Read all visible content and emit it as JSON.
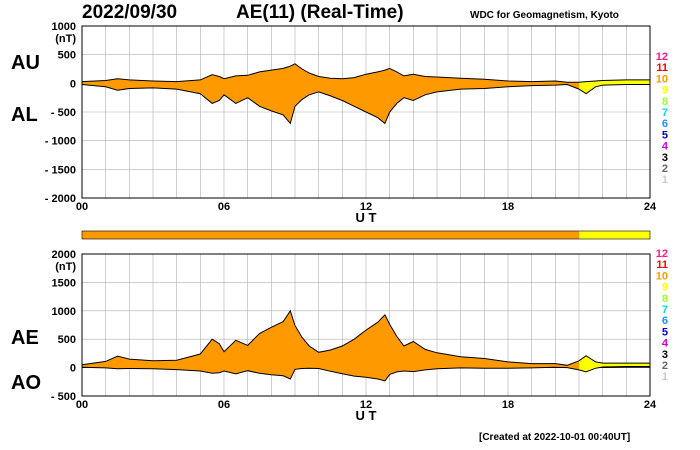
{
  "header": {
    "date": "2022/09/30",
    "title": "AE(11) (Real-Time)",
    "credit": "WDC for Geomagnetism, Kyoto"
  },
  "footer": {
    "created": "[Created at 2022-10-01 00:40UT]"
  },
  "side_labels": {
    "top_upper": "AU",
    "top_lower": "AL",
    "bottom_upper": "AE",
    "bottom_lower": "AO"
  },
  "station_legend": {
    "labels": [
      "12",
      "11",
      "10",
      "9",
      "8",
      "7",
      "6",
      "5",
      "4",
      "3",
      "2",
      "1"
    ],
    "colors": [
      "#ff1a8c",
      "#ff0000",
      "#ff9900",
      "#ffff00",
      "#99ff33",
      "#00dddd",
      "#1e90ff",
      "#0000cc",
      "#cc00cc",
      "#000000",
      "#666666",
      "#cccccc"
    ]
  },
  "colors": {
    "fill_main": "#ff9900",
    "fill_partial": "#ffff00",
    "line": "#000000",
    "grid": "#b0b0b0"
  },
  "chart_data": [
    {
      "type": "area",
      "panel": "AU/AL",
      "unit_label": "(nT)",
      "xlabel": "U T",
      "ylabel": "",
      "xlim": [
        0,
        24
      ],
      "ylim": [
        -2000,
        1000
      ],
      "x_ticks": [
        "00",
        "06",
        "12",
        "18",
        "24"
      ],
      "y_ticks": [
        "1000",
        "500",
        "0",
        "- 500",
        "- 1000",
        "- 1500",
        "- 2000"
      ],
      "partial_start_hour": 21,
      "x": [
        0,
        1,
        1.5,
        2,
        3,
        4,
        5,
        5.5,
        5.8,
        6,
        6.5,
        7,
        7.5,
        8,
        8.5,
        8.8,
        9,
        9.3,
        9.6,
        10,
        10.5,
        11,
        11.5,
        12,
        12.5,
        12.8,
        13,
        13.3,
        13.6,
        14,
        14.5,
        15,
        16,
        17,
        18,
        19,
        20,
        20.5,
        21,
        21.3,
        21.7,
        22,
        23,
        24
      ],
      "series": [
        {
          "values": [
            30,
            50,
            80,
            60,
            40,
            30,
            60,
            150,
            120,
            80,
            130,
            140,
            200,
            230,
            260,
            300,
            340,
            250,
            180,
            120,
            90,
            80,
            100,
            160,
            200,
            230,
            260,
            200,
            130,
            160,
            120,
            110,
            90,
            70,
            40,
            30,
            40,
            20,
            20,
            30,
            40,
            50,
            60,
            60
          ]
        },
        {
          "values": [
            -20,
            -60,
            -120,
            -90,
            -80,
            -100,
            -180,
            -350,
            -300,
            -200,
            -350,
            -250,
            -400,
            -480,
            -550,
            -700,
            -400,
            -280,
            -200,
            -150,
            -220,
            -300,
            -400,
            -500,
            -600,
            -700,
            -500,
            -350,
            -250,
            -300,
            -200,
            -150,
            -100,
            -90,
            -60,
            -40,
            -30,
            -20,
            -100,
            -180,
            -60,
            -30,
            -20,
            -20
          ]
        }
      ]
    },
    {
      "type": "area",
      "panel": "AE/AO",
      "unit_label": "(nT)",
      "xlabel": "U T",
      "ylabel": "",
      "xlim": [
        0,
        24
      ],
      "ylim": [
        -500,
        2000
      ],
      "x_ticks": [
        "00",
        "06",
        "12",
        "18",
        "24"
      ],
      "y_ticks": [
        "2000",
        "1500",
        "1000",
        "500",
        "0",
        "- 500"
      ],
      "partial_start_hour": 21,
      "x": [
        0,
        1,
        1.5,
        2,
        3,
        4,
        5,
        5.5,
        5.8,
        6,
        6.5,
        7,
        7.5,
        8,
        8.5,
        8.8,
        9,
        9.3,
        9.6,
        10,
        10.5,
        11,
        11.5,
        12,
        12.5,
        12.8,
        13,
        13.3,
        13.6,
        14,
        14.5,
        15,
        16,
        17,
        18,
        19,
        20,
        20.5,
        21,
        21.3,
        21.7,
        22,
        23,
        24
      ],
      "series": [
        {
          "values": [
            50,
            110,
            200,
            150,
            120,
            130,
            240,
            500,
            420,
            280,
            480,
            390,
            600,
            710,
            810,
            1000,
            740,
            530,
            380,
            270,
            310,
            380,
            500,
            660,
            800,
            930,
            760,
            550,
            380,
            460,
            320,
            260,
            190,
            160,
            100,
            70,
            70,
            40,
            120,
            210,
            100,
            80,
            80,
            80
          ]
        },
        {
          "values": [
            5,
            -5,
            -20,
            -15,
            -20,
            -35,
            -60,
            -100,
            -90,
            -60,
            -110,
            -55,
            -100,
            -125,
            -145,
            -200,
            -30,
            -15,
            -10,
            -15,
            -65,
            -110,
            -150,
            -170,
            -200,
            -235,
            -120,
            -75,
            -60,
            -70,
            -40,
            -20,
            -5,
            -10,
            -10,
            -5,
            5,
            0,
            -40,
            -75,
            -10,
            10,
            20,
            20
          ]
        }
      ]
    }
  ]
}
